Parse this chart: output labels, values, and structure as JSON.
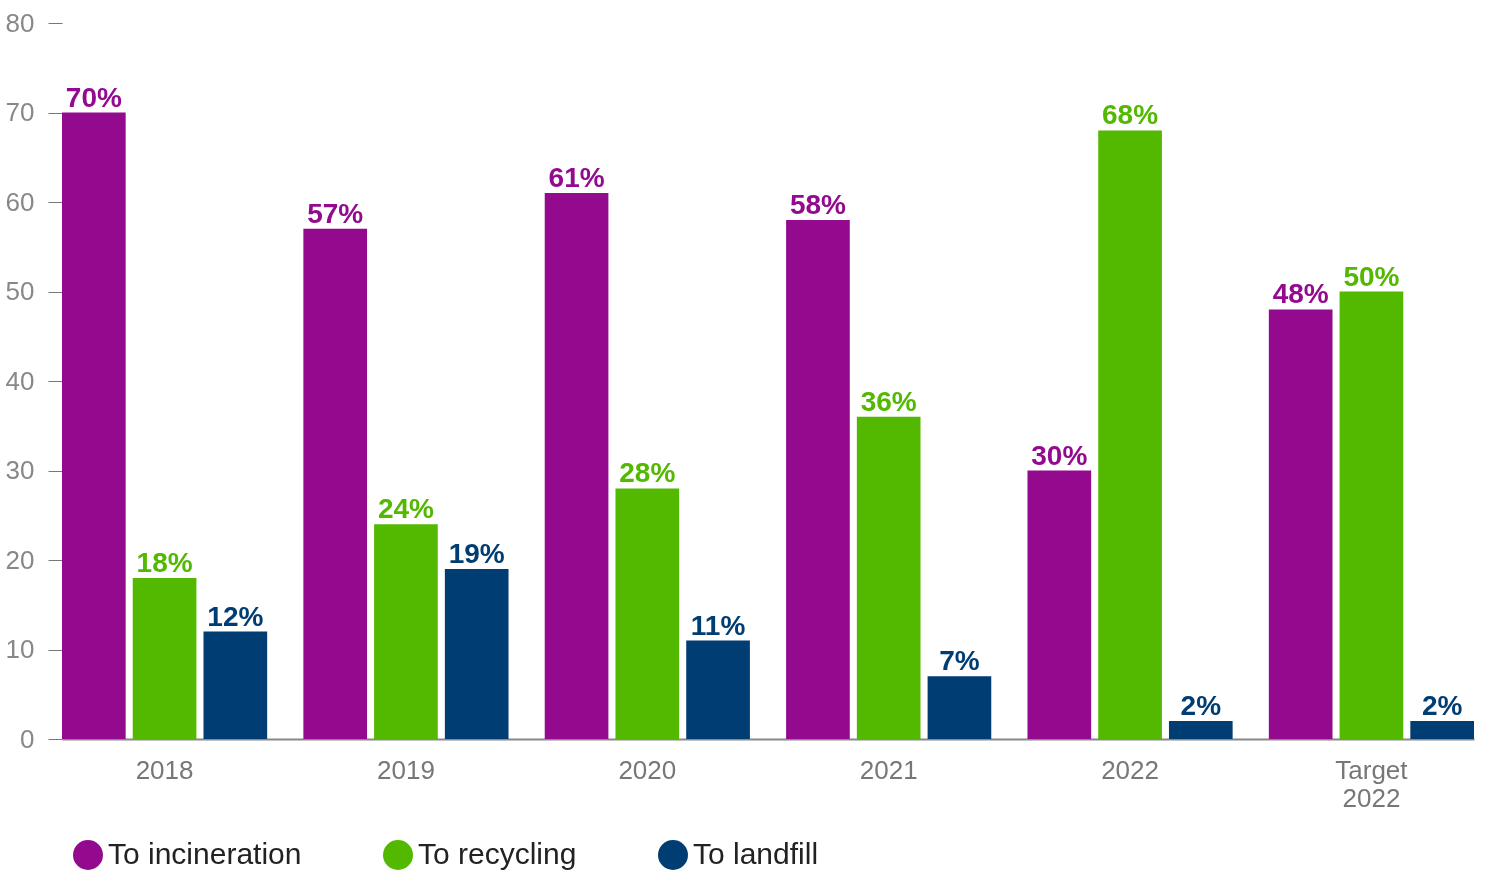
{
  "chart_data": {
    "type": "bar",
    "categories": [
      "2018",
      "2019",
      "2020",
      "2021",
      "2022",
      "Target 2022"
    ],
    "series": [
      {
        "name": "To incineration",
        "color": "#930a8f",
        "values": [
          70,
          57,
          61,
          58,
          30,
          48
        ],
        "value_labels": [
          "70%",
          "57%",
          "61%",
          "58%",
          "30%",
          "48%"
        ]
      },
      {
        "name": "To recycling",
        "color": "#52b800",
        "values": [
          18,
          24,
          28,
          36,
          68,
          50
        ],
        "value_labels": [
          "18%",
          "24%",
          "28%",
          "36%",
          "68%",
          "50%"
        ]
      },
      {
        "name": "To landfill",
        "color": "#003d73",
        "values": [
          12,
          19,
          11,
          7,
          2,
          2
        ],
        "value_labels": [
          "12%",
          "19%",
          "11%",
          "7%",
          "2%",
          "2%"
        ]
      }
    ],
    "ylim": [
      0,
      80
    ],
    "yticks": [
      0,
      10,
      20,
      30,
      40,
      50,
      60,
      70,
      80
    ],
    "legend": "bottom"
  }
}
